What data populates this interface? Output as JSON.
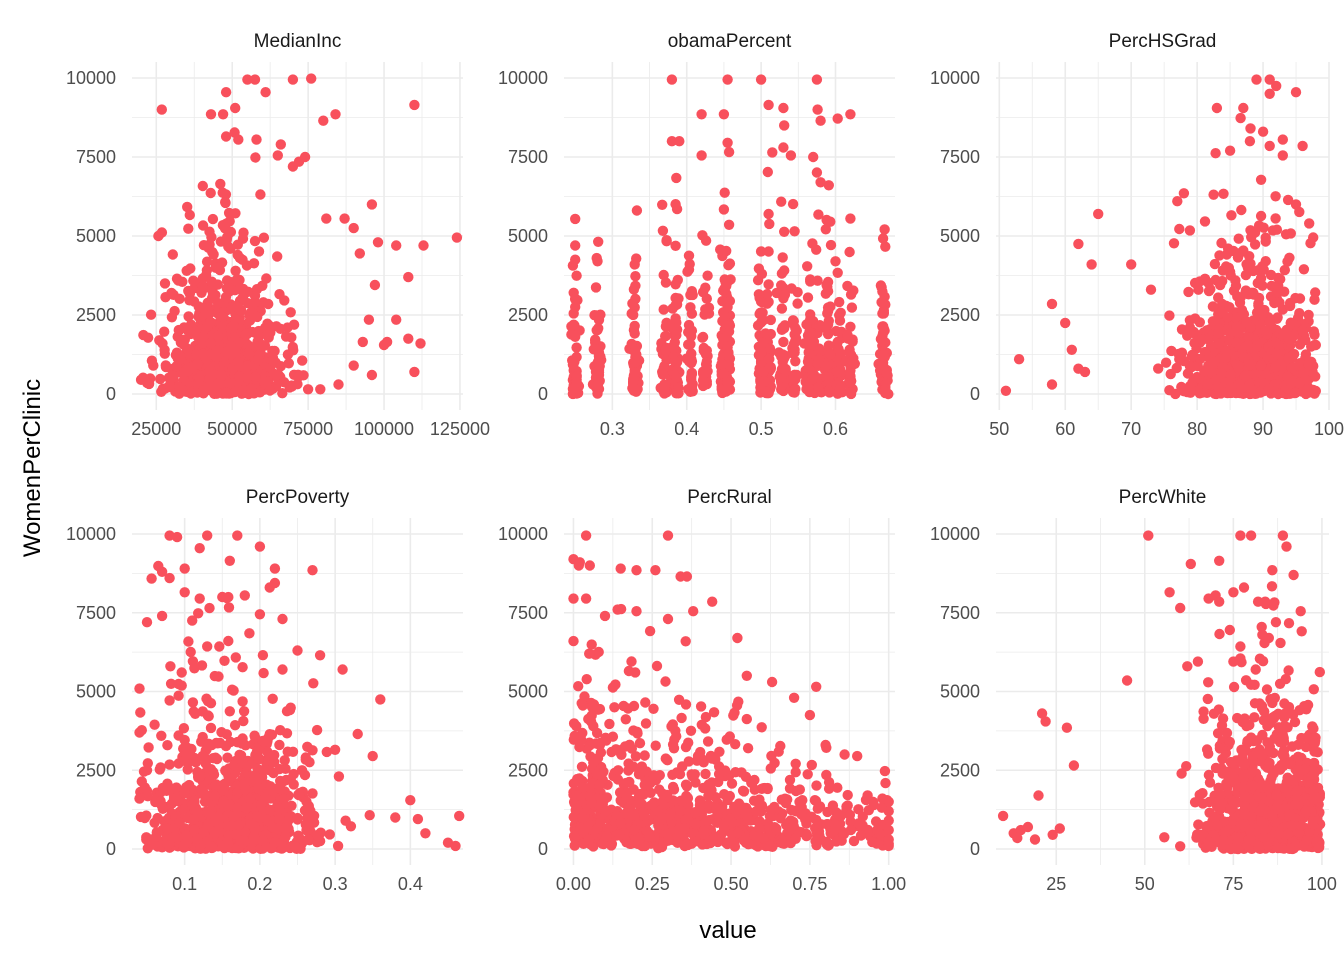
{
  "chart_data": {
    "type": "scatter",
    "xlabel": "value",
    "ylabel": "WomenPerClinic",
    "point_color": "#F8505C",
    "grid": true,
    "shared_y": {
      "lim": [
        0,
        10000
      ],
      "ticks": [
        0,
        2500,
        5000,
        7500,
        10000
      ],
      "tick_labels": [
        "0",
        "2500",
        "5000",
        "7500",
        "10000"
      ]
    },
    "panels": [
      {
        "title": "MedianInc",
        "xlim": [
          17000,
          126000
        ],
        "xticks": [
          25000,
          50000,
          75000,
          100000,
          125000
        ],
        "xtick_labels": [
          "25000",
          "50000",
          "75000",
          "100000",
          "125000"
        ],
        "dist": {
          "x_center": 47000,
          "x_spread": 9000,
          "x_min": 20000,
          "x_max": 110000,
          "y_scale": 1400,
          "x_decimals": 0
        },
        "points": [
          [
            55000,
            9950
          ],
          [
            57500,
            9950
          ],
          [
            70000,
            9950
          ],
          [
            76000,
            9980
          ],
          [
            48000,
            9550
          ],
          [
            61000,
            9550
          ],
          [
            110000,
            9150
          ],
          [
            43000,
            8850
          ],
          [
            47000,
            8850
          ],
          [
            51000,
            9050
          ],
          [
            84000,
            8850
          ],
          [
            80000,
            8650
          ],
          [
            48000,
            8150
          ],
          [
            52000,
            8050
          ],
          [
            58000,
            8050
          ],
          [
            66000,
            7900
          ],
          [
            74000,
            7500
          ],
          [
            65000,
            7550
          ],
          [
            70000,
            7200
          ],
          [
            72000,
            7350
          ],
          [
            96000,
            6000
          ],
          [
            81000,
            5550
          ],
          [
            87000,
            5550
          ],
          [
            90000,
            5250
          ],
          [
            98000,
            4800
          ],
          [
            104000,
            4700
          ],
          [
            113000,
            4700
          ],
          [
            124000,
            4950
          ],
          [
            92000,
            4450
          ],
          [
            108000,
            3700
          ],
          [
            97000,
            3450
          ],
          [
            95000,
            2350
          ],
          [
            104000,
            2350
          ],
          [
            101000,
            1650
          ],
          [
            108000,
            1750
          ],
          [
            93000,
            1650
          ],
          [
            100000,
            1550
          ],
          [
            112000,
            1600
          ],
          [
            110000,
            700
          ],
          [
            96000,
            600
          ],
          [
            90000,
            900
          ],
          [
            85000,
            300
          ],
          [
            79000,
            150
          ],
          [
            75000,
            150
          ],
          [
            35000,
            3900
          ],
          [
            30000,
            3200
          ],
          [
            26000,
            1700
          ],
          [
            24000,
            900
          ],
          [
            22000,
            350
          ],
          [
            20000,
            450
          ],
          [
            33000,
            1100
          ]
        ]
      },
      {
        "title": "obamaPercent",
        "xlim": [
          0.235,
          0.68
        ],
        "xticks": [
          0.3,
          0.4,
          0.5,
          0.6
        ],
        "xtick_labels": [
          "0.3",
          "0.4",
          "0.5",
          "0.6"
        ],
        "dist": {
          "x_columns": [
            0.25,
            0.28,
            0.33,
            0.37,
            0.385,
            0.405,
            0.425,
            0.45,
            0.455,
            0.5,
            0.51,
            0.53,
            0.545,
            0.565,
            0.575,
            0.59,
            0.605,
            0.62,
            0.665
          ],
          "y_scale": 1400,
          "x_decimals": 3
        },
        "points": [
          [
            0.38,
            9950
          ],
          [
            0.455,
            9950
          ],
          [
            0.5,
            9950
          ],
          [
            0.575,
            9950
          ],
          [
            0.51,
            9150
          ],
          [
            0.53,
            9050
          ],
          [
            0.42,
            8850
          ],
          [
            0.45,
            8850
          ],
          [
            0.62,
            8850
          ],
          [
            0.58,
            8650
          ],
          [
            0.38,
            8000
          ],
          [
            0.39,
            8000
          ],
          [
            0.42,
            7550
          ],
          [
            0.455,
            7950
          ],
          [
            0.53,
            7800
          ],
          [
            0.54,
            7550
          ],
          [
            0.57,
            7500
          ],
          [
            0.58,
            6700
          ],
          [
            0.62,
            5550
          ],
          [
            0.6,
            4200
          ],
          [
            0.25,
            4700
          ],
          [
            0.25,
            4250
          ],
          [
            0.28,
            4200
          ],
          [
            0.33,
            4100
          ],
          [
            0.665,
            1650
          ],
          [
            0.665,
            1250
          ]
        ]
      },
      {
        "title": "PercHSGrad",
        "xlim": [
          49.5,
          100
        ],
        "xticks": [
          50,
          60,
          70,
          80,
          90,
          100
        ],
        "xtick_labels": [
          "50",
          "60",
          "70",
          "80",
          "90",
          "100"
        ],
        "dist": {
          "x_center": 88,
          "x_spread": 5,
          "x_min": 68,
          "x_max": 98,
          "y_scale": 1400,
          "x_decimals": 1
        },
        "points": [
          [
            89,
            9950
          ],
          [
            91,
            9950
          ],
          [
            92,
            9750
          ],
          [
            95,
            9550
          ],
          [
            83,
            9050
          ],
          [
            87,
            9050
          ],
          [
            91,
            9500
          ],
          [
            90,
            8300
          ],
          [
            93,
            8050
          ],
          [
            88,
            8000
          ],
          [
            85,
            7700
          ],
          [
            91,
            7850
          ],
          [
            96,
            7850
          ],
          [
            93,
            7550
          ],
          [
            77,
            6100
          ],
          [
            78,
            6350
          ],
          [
            95,
            6000
          ],
          [
            97,
            5400
          ],
          [
            65,
            5700
          ],
          [
            62,
            4750
          ],
          [
            64,
            4100
          ],
          [
            70,
            4100
          ],
          [
            73,
            3300
          ],
          [
            58,
            2850
          ],
          [
            60,
            2250
          ],
          [
            53,
            1100
          ],
          [
            51,
            100
          ],
          [
            58,
            300
          ],
          [
            61,
            1400
          ],
          [
            62,
            800
          ],
          [
            63,
            700
          ],
          [
            98,
            1550
          ],
          [
            96,
            2000
          ]
        ]
      },
      {
        "title": "PercPoverty",
        "xlim": [
          0.03,
          0.47
        ],
        "xticks": [
          0.1,
          0.2,
          0.3,
          0.4
        ],
        "xtick_labels": [
          "0.1",
          "0.2",
          "0.3",
          "0.4"
        ],
        "dist": {
          "x_center": 0.16,
          "x_spread": 0.055,
          "x_min": 0.04,
          "x_max": 0.46,
          "y_scale": 1500,
          "x_decimals": 3
        },
        "points": [
          [
            0.08,
            9950
          ],
          [
            0.09,
            9900
          ],
          [
            0.13,
            9950
          ],
          [
            0.17,
            9950
          ],
          [
            0.2,
            9600
          ],
          [
            0.12,
            9550
          ],
          [
            0.16,
            9150
          ],
          [
            0.07,
            8800
          ],
          [
            0.08,
            8600
          ],
          [
            0.1,
            8900
          ],
          [
            0.22,
            8900
          ],
          [
            0.27,
            8850
          ],
          [
            0.1,
            8150
          ],
          [
            0.12,
            7950
          ],
          [
            0.15,
            8000
          ],
          [
            0.18,
            8050
          ],
          [
            0.07,
            7400
          ],
          [
            0.05,
            7200
          ],
          [
            0.11,
            7250
          ],
          [
            0.2,
            7450
          ],
          [
            0.23,
            7300
          ],
          [
            0.28,
            6150
          ],
          [
            0.25,
            6300
          ],
          [
            0.31,
            5700
          ],
          [
            0.36,
            4750
          ],
          [
            0.33,
            3650
          ],
          [
            0.35,
            2950
          ],
          [
            0.3,
            3150
          ],
          [
            0.4,
            1550
          ],
          [
            0.41,
            950
          ],
          [
            0.45,
            200
          ],
          [
            0.46,
            100
          ],
          [
            0.465,
            1050
          ],
          [
            0.38,
            1000
          ],
          [
            0.42,
            500
          ],
          [
            0.04,
            3700
          ],
          [
            0.05,
            2500
          ],
          [
            0.04,
            1600
          ]
        ]
      },
      {
        "title": "PercRural",
        "xlim": [
          -0.03,
          1.02
        ],
        "xticks": [
          0.0,
          0.25,
          0.5,
          0.75,
          1.0
        ],
        "xtick_labels": [
          "0.00",
          "0.25",
          "0.50",
          "0.75",
          "1.00"
        ],
        "dist": {
          "x_center": 0.35,
          "x_spread": 0.32,
          "x_min": 0.0,
          "x_max": 1.0,
          "y_scale": 1700,
          "x_decimals": 3,
          "y_decay": 0.7
        },
        "points": [
          [
            0.04,
            9950
          ],
          [
            0.3,
            9950
          ],
          [
            0.0,
            9200
          ],
          [
            0.02,
            9100
          ],
          [
            0.15,
            8900
          ],
          [
            0.2,
            8850
          ],
          [
            0.26,
            8850
          ],
          [
            0.34,
            8650
          ],
          [
            0.36,
            8650
          ],
          [
            0.0,
            7950
          ],
          [
            0.04,
            7950
          ],
          [
            0.1,
            7400
          ],
          [
            0.14,
            7600
          ],
          [
            0.2,
            7550
          ],
          [
            0.3,
            7300
          ],
          [
            0.44,
            7850
          ],
          [
            0.38,
            7550
          ],
          [
            0.0,
            6600
          ],
          [
            0.05,
            6200
          ],
          [
            0.52,
            6700
          ],
          [
            0.55,
            5500
          ],
          [
            0.63,
            5300
          ],
          [
            0.7,
            4800
          ],
          [
            0.77,
            5150
          ],
          [
            0.75,
            4250
          ],
          [
            0.8,
            3300
          ],
          [
            0.86,
            3000
          ],
          [
            0.9,
            2950
          ],
          [
            0.95,
            1500
          ],
          [
            1.0,
            1500
          ],
          [
            1.0,
            1200
          ],
          [
            1.0,
            900
          ],
          [
            1.0,
            600
          ],
          [
            1.0,
            300
          ],
          [
            1.0,
            100
          ],
          [
            0.98,
            1600
          ]
        ]
      },
      {
        "title": "PercWhite",
        "xlim": [
          8,
          102
        ],
        "xticks": [
          25,
          50,
          75,
          100
        ],
        "xtick_labels": [
          "25",
          "50",
          "75",
          "100"
        ],
        "dist": {
          "x_center": 85,
          "x_spread": 9,
          "x_min": 40,
          "x_max": 99.5,
          "y_scale": 1500,
          "x_decimals": 1
        },
        "points": [
          [
            51,
            9950
          ],
          [
            77,
            9950
          ],
          [
            80,
            9950
          ],
          [
            89,
            9950
          ],
          [
            90,
            9600
          ],
          [
            71,
            9150
          ],
          [
            86,
            8850
          ],
          [
            63,
            9050
          ],
          [
            92,
            8700
          ],
          [
            75,
            8150
          ],
          [
            78,
            8300
          ],
          [
            70,
            8050
          ],
          [
            57,
            8150
          ],
          [
            68,
            7950
          ],
          [
            71,
            7850
          ],
          [
            82,
            7850
          ],
          [
            84,
            7850
          ],
          [
            94,
            7550
          ],
          [
            60,
            7650
          ],
          [
            83,
            7050
          ],
          [
            85,
            6700
          ],
          [
            87,
            7200
          ],
          [
            77,
            6050
          ],
          [
            75,
            5950
          ],
          [
            65,
            5950
          ],
          [
            62,
            5800
          ],
          [
            45,
            5350
          ],
          [
            21,
            4300
          ],
          [
            22,
            4050
          ],
          [
            28,
            3850
          ],
          [
            30,
            2650
          ],
          [
            20,
            1700
          ],
          [
            10,
            1050
          ],
          [
            13,
            500
          ],
          [
            15,
            600
          ],
          [
            14,
            350
          ],
          [
            17,
            700
          ],
          [
            19,
            300
          ],
          [
            24,
            450
          ],
          [
            26,
            650
          ]
        ]
      }
    ]
  }
}
